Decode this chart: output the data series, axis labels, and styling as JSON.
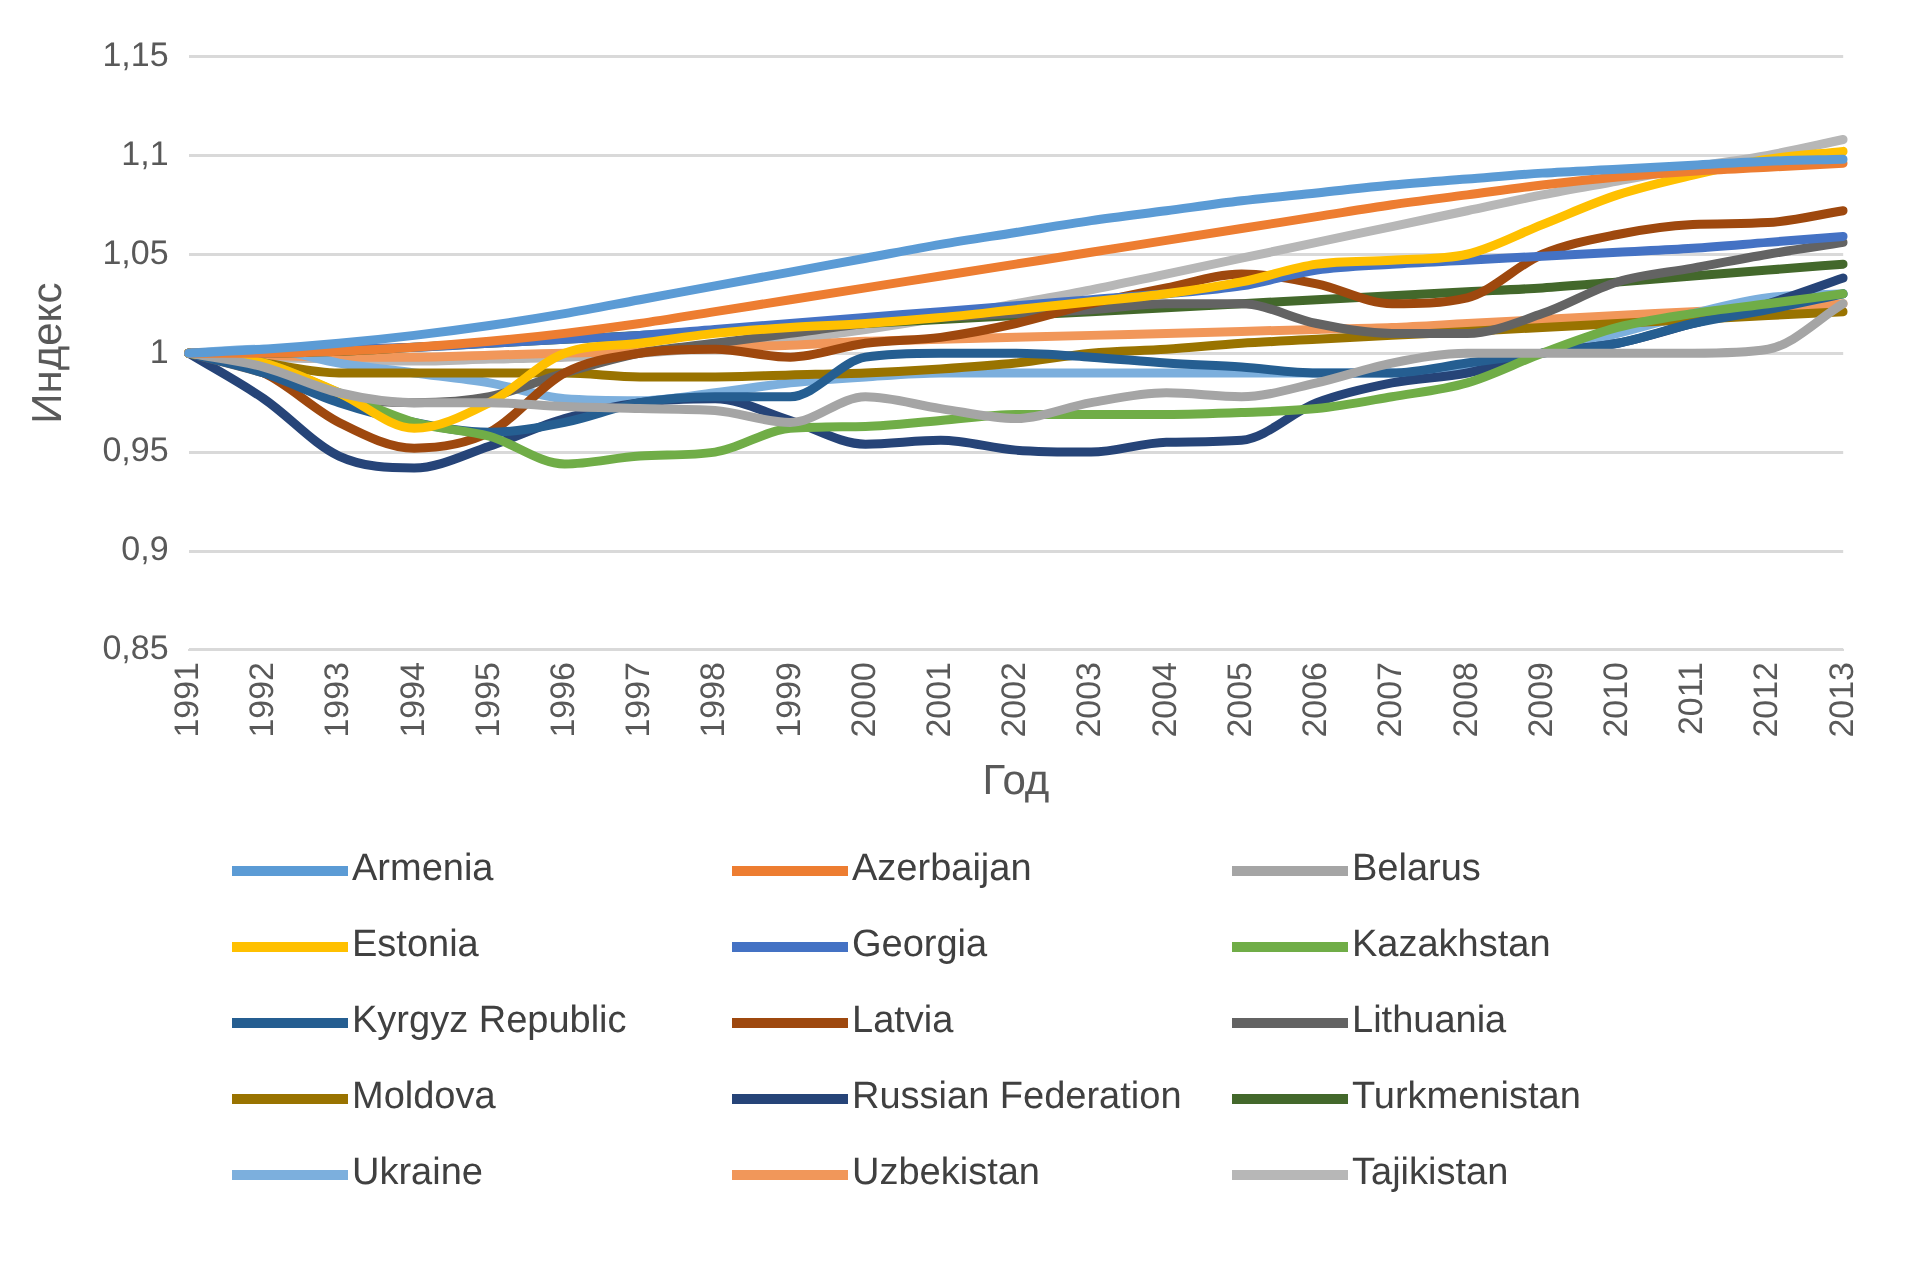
{
  "chart_data": {
    "type": "line",
    "xlabel": "Год",
    "ylabel": "Индекс",
    "categories": [
      "1991",
      "1992",
      "1993",
      "1994",
      "1995",
      "1996",
      "1997",
      "1998",
      "1999",
      "2000",
      "2001",
      "2002",
      "2003",
      "2004",
      "2005",
      "2006",
      "2007",
      "2008",
      "2009",
      "2010",
      "2011",
      "2012",
      "2013"
    ],
    "ylim": [
      0.85,
      1.15
    ],
    "yticks": [
      {
        "value": 0.85,
        "label": "0,85"
      },
      {
        "value": 0.9,
        "label": "0,9"
      },
      {
        "value": 0.95,
        "label": "0,95"
      },
      {
        "value": 1,
        "label": "1"
      },
      {
        "value": 1.05,
        "label": "1,05"
      },
      {
        "value": 1.1,
        "label": "1,1"
      },
      {
        "value": 1.15,
        "label": "1,15"
      }
    ],
    "grid": "y",
    "legend": "bottom",
    "marker": "none",
    "line_style": "solid",
    "series": [
      {
        "name": "Armenia",
        "color": "#5b9bd5",
        "values": [
          1,
          1.002,
          1.005,
          1.009,
          1.014,
          1.02,
          1.027,
          1.034,
          1.041,
          1.048,
          1.055,
          1.061,
          1.067,
          1.072,
          1.077,
          1.081,
          1.085,
          1.088,
          1.091,
          1.093,
          1.095,
          1.097,
          1.098
        ]
      },
      {
        "name": "Azerbaijan",
        "color": "#ed7d31",
        "values": [
          1,
          1,
          1.001,
          1.003,
          1.006,
          1.01,
          1.015,
          1.021,
          1.027,
          1.033,
          1.039,
          1.045,
          1.051,
          1.057,
          1.063,
          1.069,
          1.075,
          1.08,
          1.085,
          1.089,
          1.092,
          1.094,
          1.096
        ]
      },
      {
        "name": "Belarus",
        "color": "#a5a5a5",
        "values": [
          1,
          0.993,
          0.98,
          0.975,
          0.975,
          0.973,
          0.972,
          0.971,
          0.965,
          0.978,
          0.972,
          0.967,
          0.975,
          0.98,
          0.978,
          0.985,
          0.995,
          1,
          1,
          1,
          1,
          1.002,
          1.025
        ]
      },
      {
        "name": "Estonia",
        "color": "#ffc000",
        "values": [
          1,
          0.995,
          0.98,
          0.962,
          0.975,
          1,
          1.005,
          1.01,
          1.013,
          1.015,
          1.018,
          1.022,
          1.026,
          1.03,
          1.036,
          1.045,
          1.047,
          1.05,
          1.065,
          1.08,
          1.09,
          1.098,
          1.102
        ]
      },
      {
        "name": "Georgia",
        "color": "#4472c4",
        "values": [
          1,
          1,
          1.002,
          1.003,
          1.005,
          1.007,
          1.009,
          1.012,
          1.015,
          1.018,
          1.021,
          1.024,
          1.027,
          1.03,
          1.034,
          1.042,
          1.045,
          1.047,
          1.049,
          1.051,
          1.053,
          1.056,
          1.059
        ]
      },
      {
        "name": "Kazakhstan",
        "color": "#70ad47",
        "values": [
          1,
          0.995,
          0.98,
          0.965,
          0.958,
          0.944,
          0.948,
          0.95,
          0.962,
          0.963,
          0.966,
          0.969,
          0.969,
          0.969,
          0.97,
          0.972,
          0.978,
          0.985,
          1,
          1.013,
          1.02,
          1.025,
          1.03
        ]
      },
      {
        "name": "Kyrgyz Republic",
        "color": "#255e91",
        "values": [
          1,
          0.99,
          0.975,
          0.965,
          0.96,
          0.965,
          0.975,
          0.978,
          0.978,
          0.998,
          1,
          1,
          0.998,
          0.995,
          0.993,
          0.99,
          0.99,
          0.995,
          1,
          1.005,
          1.015,
          1.022,
          1.03
        ]
      },
      {
        "name": "Latvia",
        "color": "#9e480e",
        "values": [
          1,
          0.99,
          0.965,
          0.952,
          0.96,
          0.99,
          1,
          1.002,
          0.998,
          1.005,
          1.008,
          1.015,
          1.025,
          1.033,
          1.04,
          1.035,
          1.025,
          1.028,
          1.05,
          1.06,
          1.065,
          1.066,
          1.072
        ]
      },
      {
        "name": "Lithuania",
        "color": "#636363",
        "values": [
          1,
          0.99,
          0.978,
          0.975,
          0.978,
          0.99,
          1,
          1.005,
          1.01,
          1.015,
          1.018,
          1.02,
          1.022,
          1.025,
          1.025,
          1.015,
          1.01,
          1.01,
          1.02,
          1.036,
          1.043,
          1.05,
          1.056
        ]
      },
      {
        "name": "Moldova",
        "color": "#997300",
        "values": [
          1,
          0.995,
          0.99,
          0.99,
          0.99,
          0.99,
          0.988,
          0.988,
          0.989,
          0.99,
          0.992,
          0.995,
          1,
          1.002,
          1.005,
          1.007,
          1.009,
          1.011,
          1.013,
          1.015,
          1.017,
          1.019,
          1.021
        ]
      },
      {
        "name": "Russian Federation",
        "color": "#264478",
        "values": [
          1,
          0.977,
          0.948,
          0.942,
          0.953,
          0.967,
          0.975,
          0.977,
          0.966,
          0.954,
          0.956,
          0.951,
          0.95,
          0.955,
          0.956,
          0.975,
          0.985,
          0.99,
          1,
          1.005,
          1.015,
          1.025,
          1.038
        ]
      },
      {
        "name": "Turkmenistan",
        "color": "#43682b",
        "values": [
          1,
          1,
          1.001,
          1.003,
          1.005,
          1.007,
          1.009,
          1.011,
          1.013,
          1.015,
          1.017,
          1.019,
          1.021,
          1.023,
          1.025,
          1.027,
          1.029,
          1.031,
          1.033,
          1.036,
          1.039,
          1.042,
          1.045
        ]
      },
      {
        "name": "Ukraine",
        "color": "#7cafdd",
        "values": [
          1,
          1.002,
          0.995,
          0.99,
          0.985,
          0.977,
          0.976,
          0.98,
          0.985,
          0.988,
          0.99,
          0.99,
          0.99,
          0.99,
          0.99,
          0.99,
          0.99,
          0.992,
          1,
          1.01,
          1.02,
          1.028,
          1.03
        ]
      },
      {
        "name": "Uzbekistan",
        "color": "#f1975a",
        "values": [
          1,
          0.999,
          0.998,
          0.998,
          0.999,
          1,
          1.001,
          1.003,
          1.004,
          1.006,
          1.007,
          1.008,
          1.009,
          1.01,
          1.011,
          1.012,
          1.013,
          1.015,
          1.017,
          1.019,
          1.021,
          1.023,
          1.025
        ]
      },
      {
        "name": "Tajikistan",
        "color": "#b7b7b7",
        "values": [
          1,
          0.998,
          0.997,
          0.996,
          0.997,
          0.998,
          1,
          1.003,
          1.007,
          1.012,
          1.018,
          1.025,
          1.032,
          1.04,
          1.048,
          1.056,
          1.064,
          1.072,
          1.08,
          1.087,
          1.094,
          1.1,
          1.108
        ]
      }
    ]
  }
}
